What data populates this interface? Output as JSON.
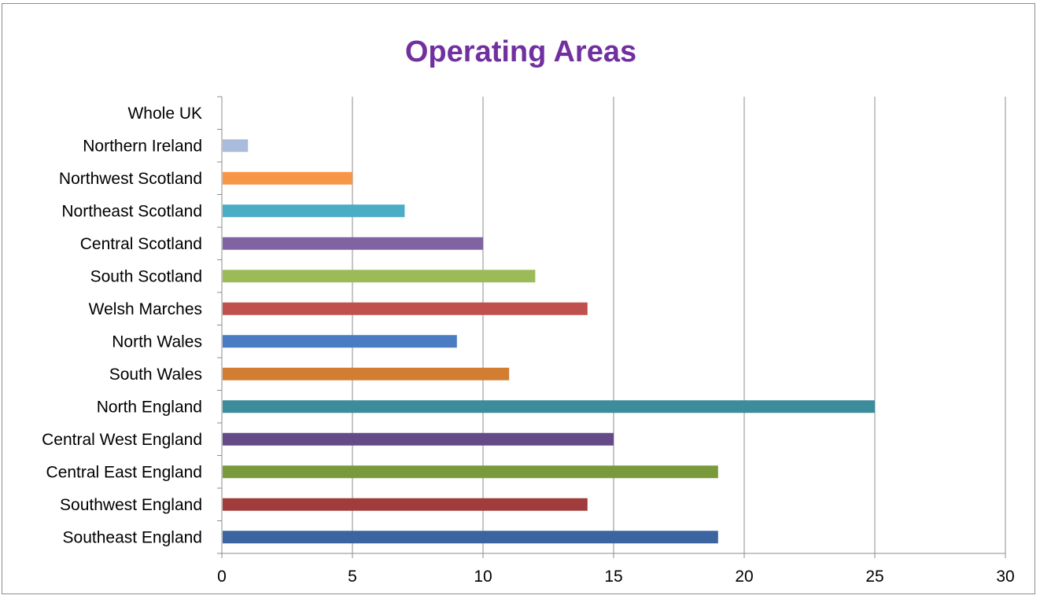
{
  "chart_data": {
    "type": "bar",
    "orientation": "horizontal",
    "title": "Operating Areas",
    "title_color": "#7030A0",
    "xlabel": "",
    "ylabel": "",
    "xlim": [
      0,
      30
    ],
    "x_ticks": [
      0,
      5,
      10,
      15,
      20,
      25,
      30
    ],
    "grid": "vertical",
    "legend": "none",
    "categories": [
      "Southeast England",
      "Southwest England",
      "Central East England",
      "Central West England",
      "North England",
      "South Wales",
      "North Wales",
      "Welsh Marches",
      "South Scotland",
      "Central Scotland",
      "Northeast Scotland",
      "Northwest Scotland",
      "Northern Ireland",
      "Whole UK"
    ],
    "values": [
      19,
      14,
      19,
      15,
      25,
      11,
      9,
      14,
      12,
      10,
      7,
      5,
      1,
      0
    ],
    "colors": [
      "#3C64A0",
      "#A03C3C",
      "#789A3C",
      "#644B87",
      "#3C8C9B",
      "#D27D32",
      "#4A7CC4",
      "#C0504D",
      "#9BBB59",
      "#8064A2",
      "#4BACC6",
      "#F79646",
      "#A9BCDC",
      "#2C4D75"
    ]
  }
}
